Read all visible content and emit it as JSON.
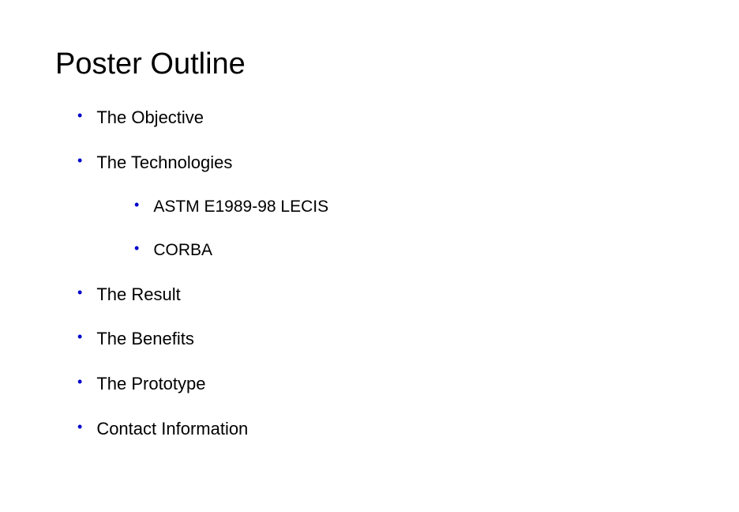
{
  "title": "Poster Outline",
  "bullets": {
    "item0": "The Objective",
    "item1": "The Technologies",
    "item2": "ASTM E1989-98 LECIS",
    "item3": "CORBA",
    "item4": "The Result",
    "item5": "The Benefits",
    "item6": "The Prototype",
    "item7": "Contact Information"
  },
  "styling": {
    "bullet_color": "#0000cc",
    "text_color": "#000000",
    "background_color": "#ffffff",
    "title_fontsize": 38,
    "body_fontsize": 22,
    "font_family": "Verdana"
  }
}
